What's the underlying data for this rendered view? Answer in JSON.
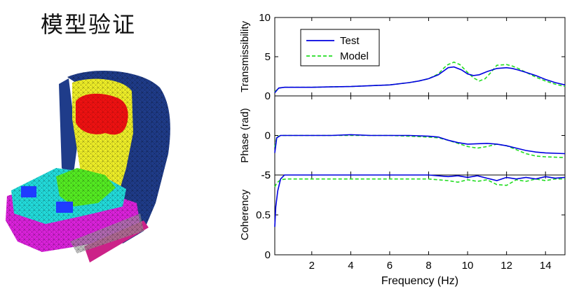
{
  "title": "模型验证",
  "colors": {
    "test": "#0000e0",
    "model": "#22dd22",
    "seat_back": "#1f3c8a",
    "seat_cushion": "#dd22dd",
    "yellow": "#f0f028",
    "red": "#ee1111",
    "cyan": "#22dddd",
    "green": "#55ee22"
  },
  "chart_data": [
    {
      "type": "line",
      "ylabel": "Transmissibility",
      "ylim": [
        0,
        10
      ],
      "yticks": [
        "0",
        "5",
        "10"
      ],
      "xlim": [
        0.1,
        15
      ],
      "legend": {
        "placement": "top-left",
        "entries": [
          "Test",
          "Model"
        ]
      },
      "series": [
        {
          "name": "Test",
          "x": [
            0.1,
            0.3,
            0.6,
            1,
            2,
            3,
            4,
            5,
            6,
            7,
            7.5,
            8,
            8.5,
            9,
            9.3,
            9.7,
            10,
            10.3,
            10.6,
            11,
            11.5,
            12,
            12.3,
            12.6,
            13,
            13.5,
            14,
            14.5,
            15
          ],
          "y": [
            0.4,
            1.0,
            1.1,
            1.1,
            1.1,
            1.15,
            1.2,
            1.3,
            1.4,
            1.7,
            1.9,
            2.2,
            2.7,
            3.6,
            3.7,
            3.3,
            2.8,
            2.6,
            2.7,
            3.1,
            3.5,
            3.6,
            3.5,
            3.3,
            3.0,
            2.6,
            2.1,
            1.7,
            1.4
          ]
        },
        {
          "name": "Model",
          "x": [
            0.1,
            0.3,
            0.6,
            1,
            2,
            3,
            4,
            5,
            6,
            7,
            7.5,
            8,
            8.5,
            8.8,
            9,
            9.3,
            9.6,
            10,
            10.3,
            10.6,
            10.9,
            11.2,
            11.5,
            12,
            12.3,
            12.6,
            13,
            13.5,
            14,
            14.5,
            15
          ],
          "y": [
            0.5,
            1.0,
            1.1,
            1.1,
            1.1,
            1.15,
            1.2,
            1.3,
            1.4,
            1.7,
            1.9,
            2.2,
            2.8,
            3.6,
            4.0,
            4.3,
            4.0,
            3.0,
            2.3,
            1.9,
            2.2,
            3.0,
            3.9,
            4.0,
            3.8,
            3.5,
            3.0,
            2.4,
            1.9,
            1.5,
            1.2
          ]
        }
      ]
    },
    {
      "type": "line",
      "ylabel": "Phase (rad)",
      "ylim": [
        -5,
        5
      ],
      "yticks": [
        "-5",
        "0"
      ],
      "xlim": [
        0.1,
        15
      ],
      "series": [
        {
          "name": "Test",
          "x": [
            0.1,
            0.2,
            0.4,
            1,
            2,
            3,
            4,
            5,
            6,
            7,
            8,
            8.5,
            9,
            9.5,
            10,
            11,
            11.5,
            12,
            12.5,
            13,
            13.5,
            14,
            15
          ],
          "y": [
            -2.2,
            -0.3,
            0,
            0,
            0,
            0,
            0.1,
            0,
            0,
            0,
            -0.1,
            -0.2,
            -0.6,
            -0.9,
            -1.1,
            -1.0,
            -1.1,
            -1.3,
            -1.6,
            -1.9,
            -2.1,
            -2.2,
            -2.3
          ]
        },
        {
          "name": "Model",
          "x": [
            0.1,
            0.2,
            0.4,
            1,
            2,
            3,
            4,
            5,
            6,
            7,
            8,
            8.5,
            9,
            9.5,
            10,
            10.5,
            11,
            11.5,
            12,
            12.5,
            13,
            13.5,
            14,
            15
          ],
          "y": [
            -1.5,
            -0.2,
            0,
            0,
            0,
            0,
            0,
            0,
            0,
            -0.1,
            -0.2,
            -0.3,
            -0.6,
            -1.0,
            -1.4,
            -1.6,
            -1.4,
            -1.1,
            -1.3,
            -1.8,
            -2.3,
            -2.6,
            -2.7,
            -2.8
          ]
        }
      ]
    },
    {
      "type": "line",
      "ylabel": "Coherency",
      "ylim": [
        0,
        1
      ],
      "yticks": [
        "0",
        "0.5",
        "-5"
      ],
      "xlabel": "Frequency (Hz)",
      "xlim": [
        0.1,
        15
      ],
      "xticks": [
        "2",
        "4",
        "6",
        "8",
        "10",
        "12",
        "14"
      ],
      "series": [
        {
          "name": "Test",
          "x": [
            0.1,
            0.15,
            0.25,
            0.4,
            0.6,
            1,
            2,
            4,
            6,
            8,
            9,
            9.5,
            10,
            10.5,
            11,
            11.5,
            12,
            12.5,
            13,
            13.5,
            14,
            14.5,
            15
          ],
          "y": [
            0.35,
            0.6,
            0.8,
            0.95,
            1.0,
            1.0,
            1.0,
            1.0,
            1.0,
            1.0,
            0.98,
            0.99,
            0.97,
            0.99,
            0.96,
            0.93,
            0.97,
            0.95,
            0.97,
            0.95,
            0.98,
            0.96,
            0.97
          ]
        },
        {
          "name": "Model",
          "x": [
            0.1,
            0.2,
            0.4,
            0.7,
            1,
            2,
            4,
            6,
            8,
            9,
            9.5,
            10,
            10.5,
            11,
            11.5,
            12,
            12.5,
            13,
            13.5,
            14,
            14.5,
            15
          ],
          "y": [
            0.85,
            0.9,
            0.94,
            0.95,
            0.95,
            0.95,
            0.95,
            0.95,
            0.95,
            0.93,
            0.91,
            0.94,
            0.92,
            0.94,
            0.88,
            0.87,
            0.94,
            0.92,
            0.95,
            0.93,
            0.95,
            0.95
          ]
        }
      ]
    }
  ]
}
